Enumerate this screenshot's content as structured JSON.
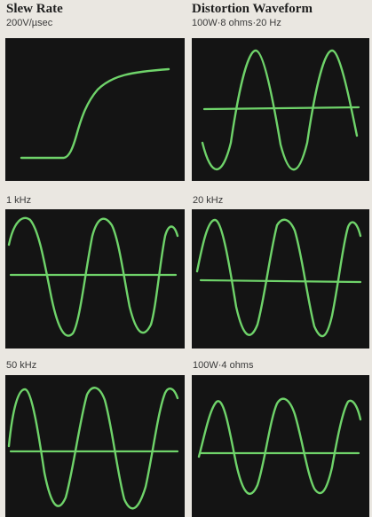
{
  "left_column": {
    "title": "Slew Rate",
    "subtitle": "200V/µsec"
  },
  "right_column": {
    "title": "Distortion Waveform",
    "subtitle": "100W·8 ohms·20 Hz"
  },
  "panels": [
    {
      "caption": "",
      "trace": "slew-rate-step",
      "colors": {
        "screen": "#141414",
        "trace": "#6fd36a"
      }
    },
    {
      "caption": "",
      "trace": "sine-3-cycles"
    },
    {
      "caption": "1 kHz",
      "trace": "sine-3-cycles"
    },
    {
      "caption": "20 kHz",
      "trace": "sine-3-cycles"
    },
    {
      "caption": "50 kHz",
      "trace": "sine-3-cycles"
    },
    {
      "caption": "100W·4 ohms",
      "trace": "sine-3-cycles"
    }
  ]
}
